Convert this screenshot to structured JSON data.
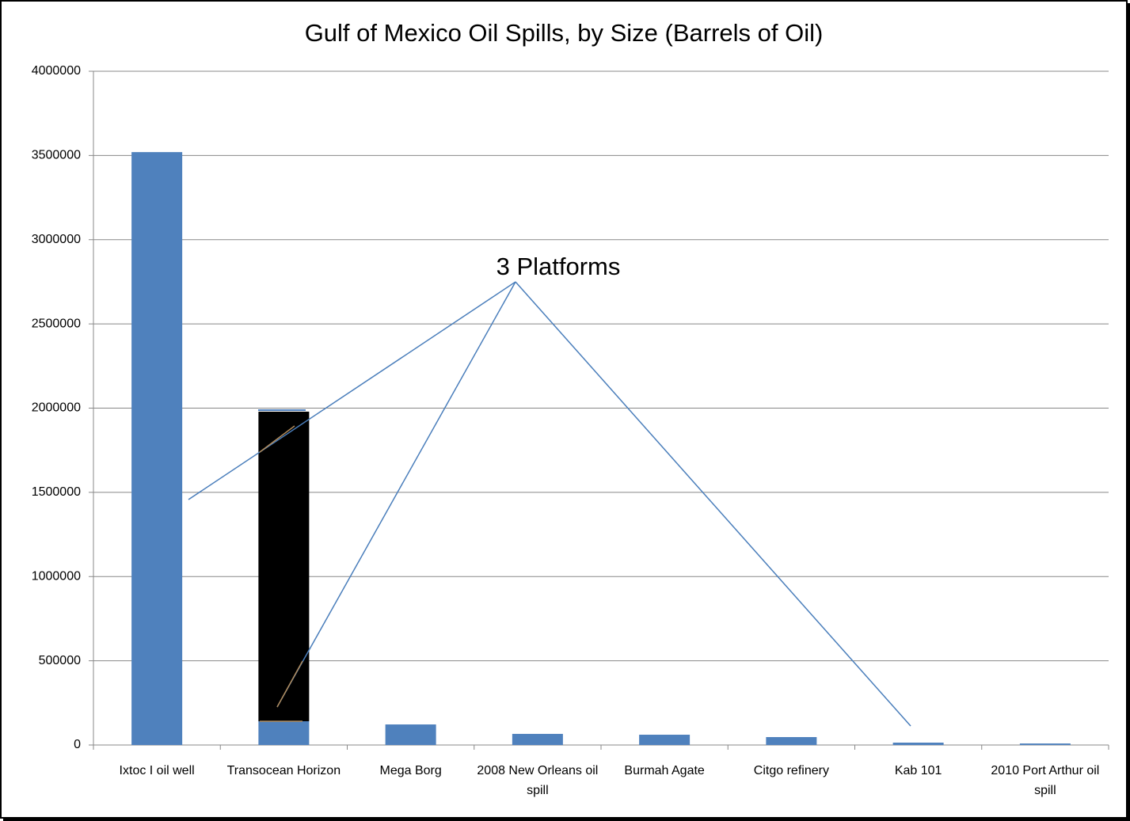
{
  "chart_data": {
    "type": "bar",
    "title": "Gulf of Mexico Oil Spills, by Size (Barrels of Oil)",
    "annotation": "3 Platforms",
    "categories": [
      "Ixtoc I oil well",
      "Transocean Horizon",
      "Mega Borg",
      "2008 New Orleans oil spill",
      "Burmah Agate",
      "Citgo refinery",
      "Kab 101",
      "2010 Port Arthur oil spill"
    ],
    "series": [
      {
        "color": "#4f81bd",
        "values": [
          3520000,
          141000,
          122000,
          66000,
          61000,
          47000,
          14000,
          9000
        ]
      },
      {
        "color": "#000000",
        "values": [
          null,
          1838000,
          null,
          null,
          null,
          null,
          null,
          null
        ]
      }
    ],
    "stacked": true,
    "ylim": [
      0,
      4000000
    ],
    "yticks": [
      0,
      500000,
      1000000,
      1500000,
      2000000,
      2500000,
      3000000,
      3500000,
      4000000
    ],
    "grid": true
  }
}
